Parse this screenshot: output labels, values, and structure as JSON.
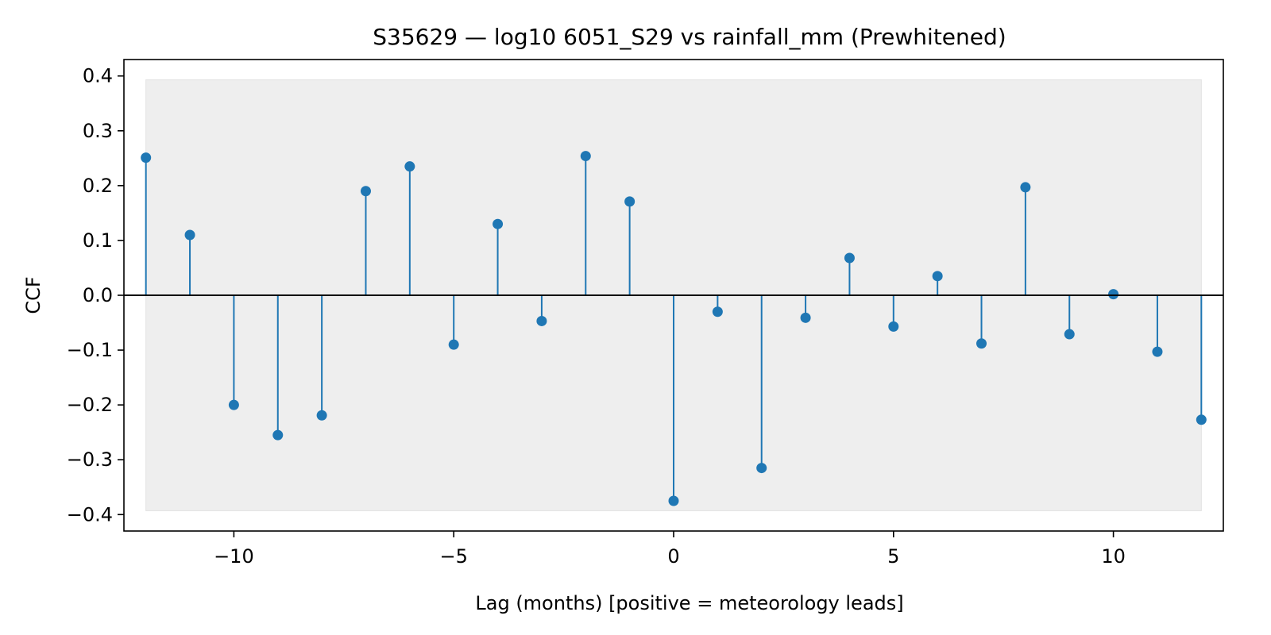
{
  "chart_data": {
    "type": "stem",
    "title": "S35629 — log10 6051_S29 vs rainfall_mm (Prewhitened)",
    "xlabel": "Lag (months)  [positive = meteorology leads]",
    "ylabel": "CCF",
    "xlim": [
      -12.5,
      12.5
    ],
    "ylim": [
      -0.43,
      0.43
    ],
    "xticks": [
      -10,
      -5,
      0,
      5,
      10
    ],
    "xtick_labels": [
      "−10",
      "−5",
      "0",
      "5",
      "10"
    ],
    "yticks": [
      0.4,
      0.3,
      0.2,
      0.1,
      0.0,
      -0.1,
      -0.2,
      -0.3,
      -0.4
    ],
    "ytick_labels": [
      "0.4",
      "0.3",
      "0.2",
      "0.1",
      "0.0",
      "−0.1",
      "−0.2",
      "−0.3",
      "−0.4"
    ],
    "confidence_band": [
      -0.393,
      0.393
    ],
    "grid": false,
    "colors": {
      "stem": "#1f77b4",
      "band": "#eeeeee",
      "baseline": "#000000"
    },
    "x": [
      -12,
      -11,
      -10,
      -9,
      -8,
      -7,
      -6,
      -5,
      -4,
      -3,
      -2,
      -1,
      0,
      1,
      2,
      3,
      4,
      5,
      6,
      7,
      8,
      9,
      10,
      11,
      12
    ],
    "values": [
      0.251,
      0.11,
      -0.2,
      -0.255,
      -0.219,
      0.19,
      0.235,
      -0.09,
      0.13,
      -0.047,
      0.254,
      0.171,
      -0.375,
      -0.03,
      -0.315,
      -0.041,
      0.068,
      -0.057,
      0.035,
      -0.088,
      0.197,
      -0.071,
      0.002,
      -0.103,
      -0.227
    ]
  }
}
